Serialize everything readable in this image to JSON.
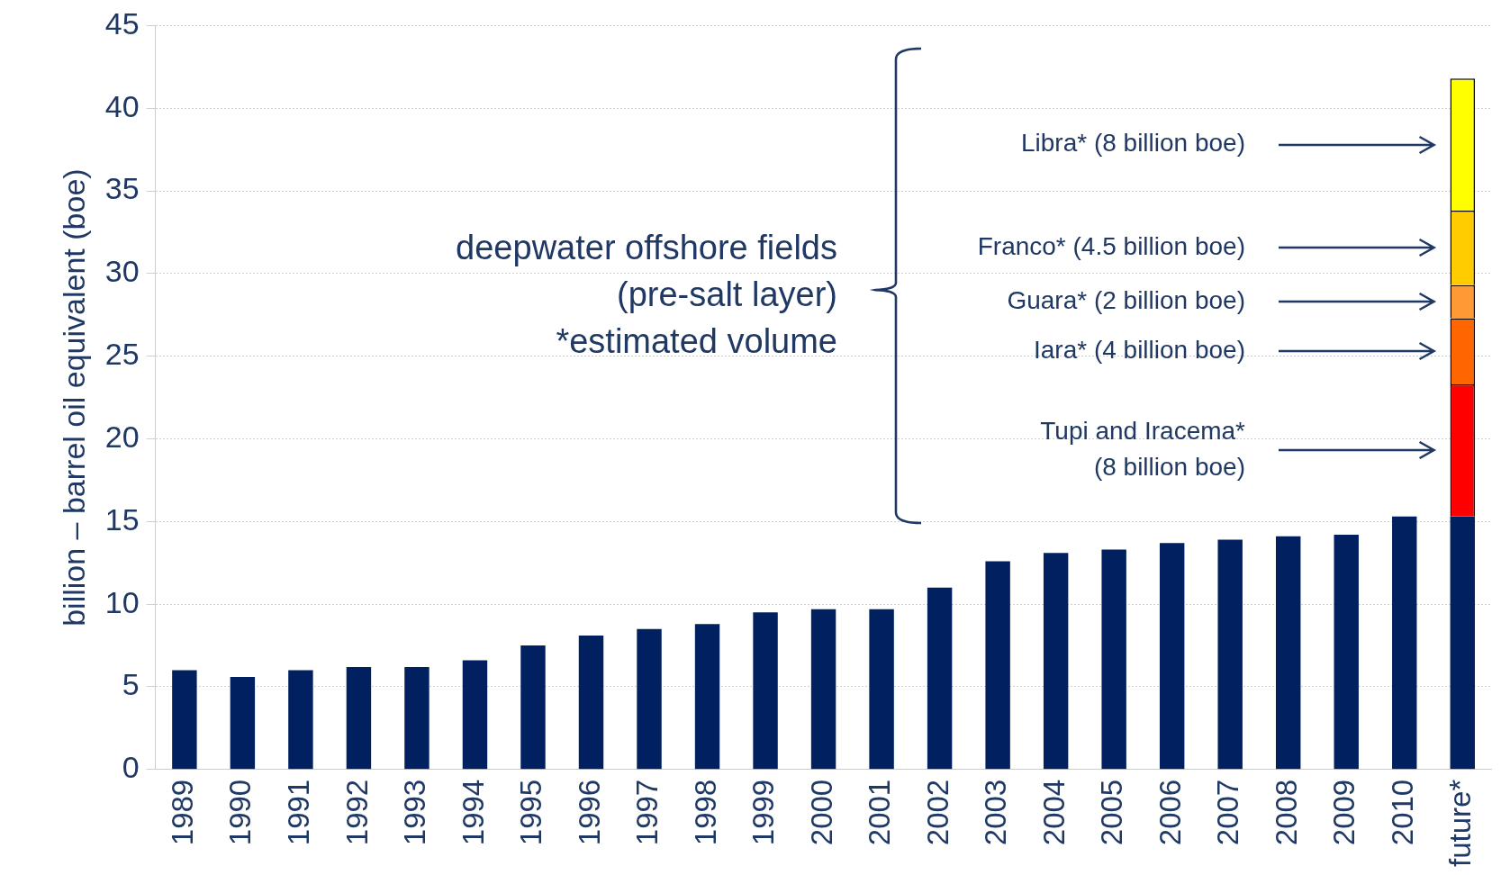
{
  "chart_data": {
    "type": "bar",
    "stacked": true,
    "ylabel": "billion – barrel oil equivalent (boe)",
    "categories": [
      "1989",
      "1990",
      "1991",
      "1992",
      "1993",
      "1994",
      "1995",
      "1996",
      "1997",
      "1998",
      "1999",
      "2000",
      "2001",
      "2002",
      "2003",
      "2004",
      "2005",
      "2006",
      "2007",
      "2008",
      "2009",
      "2010",
      "future*"
    ],
    "series": [
      {
        "color": "#002060",
        "values": [
          6.0,
          5.6,
          6.0,
          6.2,
          6.2,
          6.6,
          7.5,
          8.1,
          8.5,
          8.8,
          9.5,
          9.7,
          9.7,
          11.0,
          12.6,
          13.1,
          13.3,
          13.7,
          13.9,
          14.1,
          14.2,
          15.3,
          15.3
        ]
      },
      {
        "color": "#ff0000",
        "values": [
          null,
          null,
          null,
          null,
          null,
          null,
          null,
          null,
          null,
          null,
          null,
          null,
          null,
          null,
          null,
          null,
          null,
          null,
          null,
          null,
          null,
          null,
          8
        ]
      },
      {
        "color": "#ff6600",
        "values": [
          null,
          null,
          null,
          null,
          null,
          null,
          null,
          null,
          null,
          null,
          null,
          null,
          null,
          null,
          null,
          null,
          null,
          null,
          null,
          null,
          null,
          null,
          4
        ]
      },
      {
        "color": "#ff9933",
        "values": [
          null,
          null,
          null,
          null,
          null,
          null,
          null,
          null,
          null,
          null,
          null,
          null,
          null,
          null,
          null,
          null,
          null,
          null,
          null,
          null,
          null,
          null,
          2
        ]
      },
      {
        "color": "#ffcc00",
        "values": [
          null,
          null,
          null,
          null,
          null,
          null,
          null,
          null,
          null,
          null,
          null,
          null,
          null,
          null,
          null,
          null,
          null,
          null,
          null,
          null,
          null,
          null,
          4.5
        ]
      },
      {
        "color": "#ffff00",
        "values": [
          null,
          null,
          null,
          null,
          null,
          null,
          null,
          null,
          null,
          null,
          null,
          null,
          null,
          null,
          null,
          null,
          null,
          null,
          null,
          null,
          null,
          null,
          8
        ]
      }
    ],
    "ylim": [
      0,
      45
    ],
    "yticks": [
      0,
      5,
      10,
      15,
      20,
      25,
      30,
      35,
      40,
      45
    ],
    "grid": "y",
    "legend": false,
    "annotations": [
      "Tupi and Iracema*\n(8 billion boe)",
      "Iara* (4 billion boe)",
      "Guara* (2 billion boe)",
      "Franco* (4.5 billion boe)",
      "Libra* (8 billion boe)",
      "deepwater offshore fields\n(pre-salt layer)\n*estimated volume"
    ]
  }
}
